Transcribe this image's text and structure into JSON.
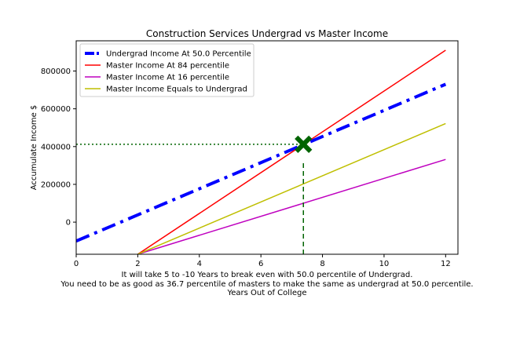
{
  "chart_data": {
    "type": "line",
    "title": "Construction Services Undergrad vs Master Income",
    "xlabel_lines": [
      "It will take 5 to -10 Years to break even with 50.0 percentile of Undergrad.",
      "You need to be as good as 36.7 percentile of masters to make the same as undergrad at 50.0 percentile.",
      "Years Out of College"
    ],
    "ylabel": "Accumulate Income $",
    "xlim": [
      0,
      12.4
    ],
    "ylim": [
      -170000,
      960000
    ],
    "xticks": [
      "0",
      "2",
      "4",
      "6",
      "8",
      "10",
      "12"
    ],
    "xtick_values": [
      0,
      2,
      4,
      6,
      8,
      10,
      12
    ],
    "yticks": [
      "0",
      "200000",
      "400000",
      "600000",
      "800000"
    ],
    "ytick_values": [
      0,
      200000,
      400000,
      600000,
      800000
    ],
    "grid": false,
    "legend_position": "top-left",
    "series": [
      {
        "name": "Undergrad Income At 50.0 Percentile",
        "color": "#0000ff",
        "style": "dashdot",
        "width": 4,
        "x": [
          0,
          12
        ],
        "y": [
          -100000,
          730000
        ]
      },
      {
        "name": "Master Income At 84 percentile",
        "color": "#ff0000",
        "style": "solid",
        "width": 1.5,
        "x": [
          2,
          12
        ],
        "y": [
          -170000,
          910000
        ]
      },
      {
        "name": "Master Income At 16 percentile",
        "color": "#bf00bf",
        "style": "solid",
        "width": 1.5,
        "x": [
          2,
          12
        ],
        "y": [
          -170000,
          332000
        ]
      },
      {
        "name": "Master Income Equals to Undergrad",
        "color": "#bfbf00",
        "style": "solid",
        "width": 1.5,
        "x": [
          2,
          12
        ],
        "y": [
          -170000,
          522000
        ]
      }
    ],
    "annotations": {
      "marker": {
        "x": 7.38,
        "y": 412000,
        "color": "#006400",
        "shape": "X"
      },
      "hline": {
        "y": 412000,
        "x_from": 0,
        "x_to": 7.38,
        "color": "#006400",
        "style": "dotted"
      },
      "vline": {
        "x": 7.38,
        "y_from": -170000,
        "y_to": 320000,
        "color": "#006400",
        "style": "dashed"
      }
    }
  }
}
